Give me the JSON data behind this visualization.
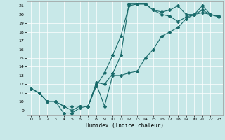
{
  "xlabel": "Humidex (Indice chaleur)",
  "bg_color": "#c8e8e8",
  "line_color": "#1a6b6b",
  "markersize": 2.0,
  "linewidth": 0.8,
  "xlim": [
    -0.5,
    23.5
  ],
  "ylim": [
    8.5,
    21.5
  ],
  "xticks": [
    0,
    1,
    2,
    3,
    4,
    5,
    6,
    7,
    8,
    9,
    10,
    11,
    12,
    13,
    14,
    15,
    16,
    17,
    18,
    19,
    20,
    21,
    22,
    23
  ],
  "yticks": [
    9,
    10,
    11,
    12,
    13,
    14,
    15,
    16,
    17,
    18,
    19,
    20,
    21
  ],
  "line1_x": [
    0,
    1,
    2,
    3,
    4,
    5,
    6,
    7,
    8,
    9,
    10,
    11,
    12,
    13,
    14,
    15,
    16,
    17,
    18,
    19,
    20,
    21,
    22,
    23
  ],
  "line1_y": [
    11.5,
    11.0,
    10.0,
    10.0,
    8.7,
    8.7,
    9.3,
    9.5,
    12.2,
    12.0,
    13.2,
    15.3,
    21.2,
    21.2,
    21.2,
    20.5,
    20.3,
    20.5,
    21.0,
    20.0,
    20.0,
    21.0,
    20.0,
    19.8
  ],
  "line2_x": [
    0,
    1,
    2,
    3,
    4,
    5,
    6,
    7,
    8,
    9,
    10,
    11,
    12,
    13,
    14,
    15,
    16,
    17,
    18,
    19,
    20,
    21,
    22,
    23
  ],
  "line2_y": [
    11.5,
    11.0,
    10.0,
    10.0,
    9.5,
    9.0,
    9.5,
    9.5,
    11.8,
    13.3,
    15.3,
    17.5,
    21.0,
    21.2,
    21.2,
    20.5,
    20.0,
    19.8,
    19.2,
    19.7,
    20.0,
    20.2,
    20.0,
    19.7
  ],
  "line3_x": [
    0,
    1,
    2,
    3,
    4,
    5,
    6,
    7,
    8,
    9,
    10,
    11,
    12,
    13,
    14,
    15,
    16,
    17,
    18,
    19,
    20,
    21,
    22,
    23
  ],
  "line3_y": [
    11.5,
    11.0,
    10.0,
    10.0,
    9.5,
    9.5,
    9.5,
    9.5,
    12.0,
    9.5,
    13.0,
    13.0,
    13.3,
    13.5,
    15.0,
    16.0,
    17.5,
    18.0,
    18.5,
    19.5,
    20.0,
    20.5,
    20.0,
    19.8
  ]
}
